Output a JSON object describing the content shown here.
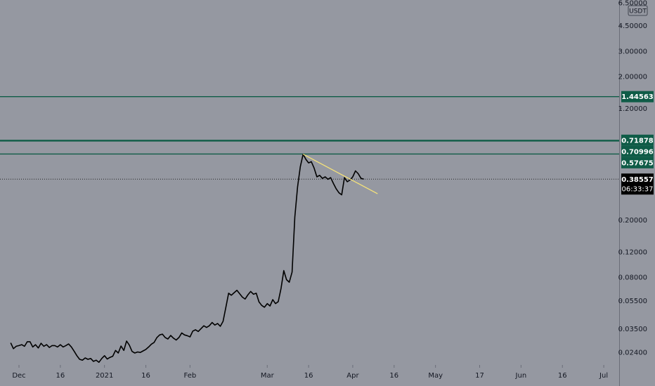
{
  "chart_data": {
    "type": "line",
    "currency": "USDT",
    "y_scale": "log",
    "ylim": [
      0.0215,
      6.5
    ],
    "y_ticks": [
      {
        "v": 6.5,
        "label": "6.50000"
      },
      {
        "v": 4.5,
        "label": "4.50000"
      },
      {
        "v": 3.0,
        "label": "3.00000"
      },
      {
        "v": 2.0,
        "label": "2.00000"
      },
      {
        "v": 1.2,
        "label": "1.20000"
      },
      {
        "v": 0.2,
        "label": "0.20000"
      },
      {
        "v": 0.12,
        "label": "0.12000"
      },
      {
        "v": 0.08,
        "label": "0.08000"
      },
      {
        "v": 0.055,
        "label": "0.05500"
      },
      {
        "v": 0.035,
        "label": "0.03500"
      },
      {
        "v": 0.024,
        "label": "0.02400"
      }
    ],
    "x_ticks": [
      {
        "d": "2020-12-01",
        "label": "Dec"
      },
      {
        "d": "2020-12-16",
        "label": "16"
      },
      {
        "d": "2021-01-01",
        "label": "2021"
      },
      {
        "d": "2021-01-16",
        "label": "16"
      },
      {
        "d": "2021-02-01",
        "label": "Feb"
      },
      {
        "d": "2021-03-01",
        "label": "Mar"
      },
      {
        "d": "2021-03-16",
        "label": "16"
      },
      {
        "d": "2021-04-01",
        "label": "Apr"
      },
      {
        "d": "2021-04-16",
        "label": "16"
      },
      {
        "d": "2021-05-01",
        "label": "May"
      },
      {
        "d": "2021-05-17",
        "label": "17"
      },
      {
        "d": "2021-06-01",
        "label": "Jun"
      },
      {
        "d": "2021-06-16",
        "label": "16"
      },
      {
        "d": "2021-07-01",
        "label": "Jul"
      }
    ],
    "series": [
      {
        "color": "#000000",
        "points": [
          [
            "2020-11-28",
            0.028
          ],
          [
            "2020-11-29",
            0.0255
          ],
          [
            "2020-11-30",
            0.0265
          ],
          [
            "2020-12-01",
            0.0268
          ],
          [
            "2020-12-02",
            0.0272
          ],
          [
            "2020-12-03",
            0.0265
          ],
          [
            "2020-12-04",
            0.0285
          ],
          [
            "2020-12-05",
            0.0285
          ],
          [
            "2020-12-06",
            0.0262
          ],
          [
            "2020-12-07",
            0.0272
          ],
          [
            "2020-12-08",
            0.0258
          ],
          [
            "2020-12-09",
            0.0278
          ],
          [
            "2020-12-10",
            0.0265
          ],
          [
            "2020-12-11",
            0.0272
          ],
          [
            "2020-12-12",
            0.026
          ],
          [
            "2020-12-13",
            0.0268
          ],
          [
            "2020-12-14",
            0.0268
          ],
          [
            "2020-12-15",
            0.0262
          ],
          [
            "2020-12-16",
            0.0272
          ],
          [
            "2020-12-17",
            0.0262
          ],
          [
            "2020-12-18",
            0.0268
          ],
          [
            "2020-12-19",
            0.0275
          ],
          [
            "2020-12-20",
            0.0262
          ],
          [
            "2020-12-21",
            0.0245
          ],
          [
            "2020-12-22",
            0.0228
          ],
          [
            "2020-12-23",
            0.0215
          ],
          [
            "2020-12-24",
            0.0212
          ],
          [
            "2020-12-25",
            0.022
          ],
          [
            "2020-12-26",
            0.0215
          ],
          [
            "2020-12-27",
            0.0218
          ],
          [
            "2020-12-28",
            0.0208
          ],
          [
            "2020-12-29",
            0.0212
          ],
          [
            "2020-12-30",
            0.0205
          ],
          [
            "2020-12-31",
            0.0218
          ],
          [
            "2021-01-01",
            0.0228
          ],
          [
            "2021-01-02",
            0.0216
          ],
          [
            "2021-01-03",
            0.0222
          ],
          [
            "2021-01-04",
            0.0226
          ],
          [
            "2021-01-05",
            0.0248
          ],
          [
            "2021-01-06",
            0.0238
          ],
          [
            "2021-01-07",
            0.0266
          ],
          [
            "2021-01-08",
            0.0248
          ],
          [
            "2021-01-09",
            0.0288
          ],
          [
            "2021-01-10",
            0.027
          ],
          [
            "2021-01-11",
            0.0244
          ],
          [
            "2021-01-12",
            0.0238
          ],
          [
            "2021-01-13",
            0.0242
          ],
          [
            "2021-01-14",
            0.024
          ],
          [
            "2021-01-15",
            0.0246
          ],
          [
            "2021-01-16",
            0.0252
          ],
          [
            "2021-01-17",
            0.0262
          ],
          [
            "2021-01-18",
            0.0274
          ],
          [
            "2021-01-19",
            0.0282
          ],
          [
            "2021-01-20",
            0.0305
          ],
          [
            "2021-01-21",
            0.0318
          ],
          [
            "2021-01-22",
            0.0322
          ],
          [
            "2021-01-23",
            0.0305
          ],
          [
            "2021-01-24",
            0.0298
          ],
          [
            "2021-01-25",
            0.0315
          ],
          [
            "2021-01-26",
            0.0302
          ],
          [
            "2021-01-27",
            0.0293
          ],
          [
            "2021-01-28",
            0.0305
          ],
          [
            "2021-01-29",
            0.0328
          ],
          [
            "2021-01-30",
            0.0318
          ],
          [
            "2021-01-31",
            0.0314
          ],
          [
            "2021-02-01",
            0.0308
          ],
          [
            "2021-02-02",
            0.0338
          ],
          [
            "2021-02-03",
            0.0345
          ],
          [
            "2021-02-04",
            0.0336
          ],
          [
            "2021-02-05",
            0.0352
          ],
          [
            "2021-02-06",
            0.0368
          ],
          [
            "2021-02-07",
            0.0358
          ],
          [
            "2021-02-08",
            0.0368
          ],
          [
            "2021-02-09",
            0.0388
          ],
          [
            "2021-02-10",
            0.0372
          ],
          [
            "2021-02-11",
            0.0382
          ],
          [
            "2021-02-12",
            0.0365
          ],
          [
            "2021-02-13",
            0.0395
          ],
          [
            "2021-02-14",
            0.0495
          ],
          [
            "2021-02-15",
            0.062
          ],
          [
            "2021-02-16",
            0.06
          ],
          [
            "2021-02-17",
            0.0625
          ],
          [
            "2021-02-18",
            0.065
          ],
          [
            "2021-02-19",
            0.0615
          ],
          [
            "2021-02-20",
            0.0582
          ],
          [
            "2021-02-21",
            0.0565
          ],
          [
            "2021-02-22",
            0.0605
          ],
          [
            "2021-02-23",
            0.0638
          ],
          [
            "2021-02-24",
            0.061
          ],
          [
            "2021-02-25",
            0.062
          ],
          [
            "2021-02-26",
            0.054
          ],
          [
            "2021-02-27",
            0.051
          ],
          [
            "2021-02-28",
            0.0495
          ],
          [
            "2021-03-01",
            0.0525
          ],
          [
            "2021-03-02",
            0.0505
          ],
          [
            "2021-03-03",
            0.056
          ],
          [
            "2021-03-04",
            0.0525
          ],
          [
            "2021-03-05",
            0.0542
          ],
          [
            "2021-03-06",
            0.067
          ],
          [
            "2021-03-07",
            0.089
          ],
          [
            "2021-03-08",
            0.077
          ],
          [
            "2021-03-09",
            0.074
          ],
          [
            "2021-03-10",
            0.087
          ],
          [
            "2021-03-11",
            0.21
          ],
          [
            "2021-03-12",
            0.34
          ],
          [
            "2021-03-13",
            0.47
          ],
          [
            "2021-03-14",
            0.575
          ],
          [
            "2021-03-15",
            0.53
          ],
          [
            "2021-03-16",
            0.5
          ],
          [
            "2021-03-17",
            0.51
          ],
          [
            "2021-03-18",
            0.46
          ],
          [
            "2021-03-19",
            0.4
          ],
          [
            "2021-03-20",
            0.41
          ],
          [
            "2021-03-21",
            0.39
          ],
          [
            "2021-03-22",
            0.4
          ],
          [
            "2021-03-23",
            0.385
          ],
          [
            "2021-03-24",
            0.395
          ],
          [
            "2021-03-25",
            0.36
          ],
          [
            "2021-03-26",
            0.33
          ],
          [
            "2021-03-27",
            0.31
          ],
          [
            "2021-03-28",
            0.3
          ],
          [
            "2021-03-29",
            0.395
          ],
          [
            "2021-03-30",
            0.37
          ],
          [
            "2021-03-31",
            0.38
          ],
          [
            "2021-04-01",
            0.4
          ],
          [
            "2021-04-02",
            0.44
          ],
          [
            "2021-04-03",
            0.42
          ],
          [
            "2021-04-04",
            0.39
          ],
          [
            "2021-04-05",
            0.3856
          ]
        ]
      }
    ],
    "trendline": {
      "color": "#f5e27a",
      "from": [
        "2021-03-14",
        0.575
      ],
      "to": [
        "2021-04-10",
        0.305
      ]
    },
    "h_lines": [
      {
        "value": 1.44563,
        "label": "1.44563",
        "color": "#0f5c47",
        "width": 1.3
      },
      {
        "value": 0.71878,
        "label": "0.71878",
        "color": "#0f5c47",
        "width": 1.3
      },
      {
        "value": 0.70996,
        "label": "0.70996",
        "color": "#0f5c47",
        "width": 1.3
      },
      {
        "value": 0.57675,
        "label": "0.57675",
        "color": "#0f5c47",
        "width": 1.3
      }
    ],
    "last_price": {
      "value": 0.38557,
      "label": "0.38557",
      "countdown": "06:33:37"
    },
    "colors": {
      "background": "#9598a1",
      "line": "#000000",
      "level": "#0f5c47",
      "price_tag": "#000000",
      "axis_text": "#131722"
    }
  }
}
